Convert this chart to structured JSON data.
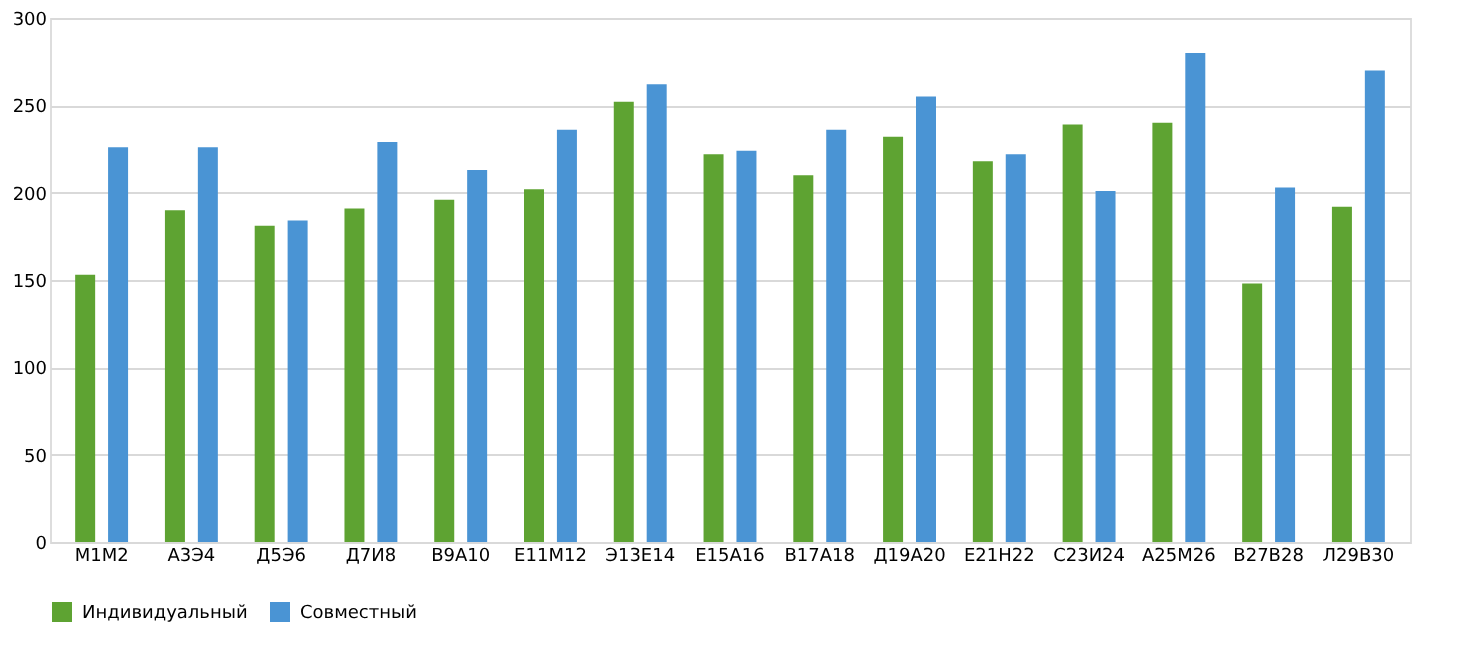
{
  "chart_data": {
    "type": "bar",
    "categories": [
      "М1М2",
      "А3Э4",
      "Д5Э6",
      "Д7И8",
      "В9А10",
      "Е11М12",
      "Э13Е14",
      "Е15А16",
      "В17А18",
      "Д19А20",
      "Е21Н22",
      "С23И24",
      "А25М26",
      "В27В28",
      "Л29В30"
    ],
    "series": [
      {
        "name": "Индивидуальный",
        "color": "#5ea332",
        "values": [
          153,
          190,
          181,
          191,
          196,
          202,
          252,
          222,
          210,
          232,
          218,
          239,
          240,
          148,
          192
        ]
      },
      {
        "name": "Совместный",
        "color": "#4a94d4",
        "values": [
          226,
          226,
          184,
          229,
          213,
          236,
          262,
          224,
          236,
          255,
          222,
          201,
          280,
          203,
          270
        ]
      }
    ],
    "ylim": [
      0,
      300
    ],
    "yticks": [
      0,
      50,
      100,
      150,
      200,
      250,
      300
    ],
    "grid": "y",
    "legend": "bottom"
  }
}
